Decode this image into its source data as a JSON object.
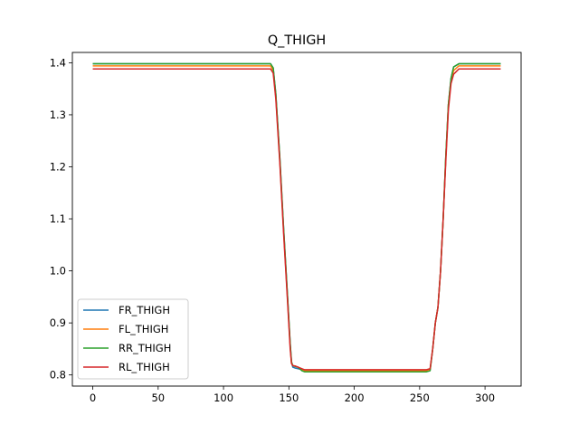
{
  "chart_data": {
    "type": "line",
    "title": "Q_THIGH",
    "xlabel": "",
    "ylabel": "",
    "xlim": [
      -15.6,
      327.6
    ],
    "ylim": [
      0.7786,
      1.4198
    ],
    "xticks": [
      0,
      50,
      100,
      150,
      200,
      250,
      300
    ],
    "xtick_labels": [
      "0",
      "50",
      "100",
      "150",
      "200",
      "250",
      "300"
    ],
    "yticks": [
      0.8,
      0.9,
      1.0,
      1.1,
      1.2,
      1.3,
      1.4
    ],
    "ytick_labels": [
      "0.8",
      "0.9",
      "1.0",
      "1.1",
      "1.2",
      "1.3",
      "1.4"
    ],
    "grid": false,
    "legend_position": "lower-left",
    "series": [
      {
        "name": "FR_THIGH",
        "color": "#1f77b4",
        "points": [
          [
            0,
            1.398
          ],
          [
            136,
            1.398
          ],
          [
            138,
            1.39
          ],
          [
            140,
            1.34
          ],
          [
            143,
            1.22
          ],
          [
            146,
            1.08
          ],
          [
            149,
            0.95
          ],
          [
            151,
            0.86
          ],
          [
            152,
            0.825
          ],
          [
            153,
            0.815
          ],
          [
            155,
            0.813
          ],
          [
            157,
            0.812
          ],
          [
            160,
            0.81
          ],
          [
            162,
            0.808
          ],
          [
            200,
            0.808
          ],
          [
            255,
            0.808
          ],
          [
            258,
            0.81
          ],
          [
            260,
            0.85
          ],
          [
            262,
            0.9
          ],
          [
            264,
            0.93
          ],
          [
            266,
            1.0
          ],
          [
            268,
            1.1
          ],
          [
            270,
            1.22
          ],
          [
            272,
            1.32
          ],
          [
            274,
            1.37
          ],
          [
            276,
            1.392
          ],
          [
            280,
            1.398
          ],
          [
            312,
            1.398
          ]
        ]
      },
      {
        "name": "FL_THIGH",
        "color": "#ff7f0e",
        "points": [
          [
            0,
            1.394
          ],
          [
            136,
            1.394
          ],
          [
            138,
            1.385
          ],
          [
            140,
            1.335
          ],
          [
            143,
            1.215
          ],
          [
            146,
            1.075
          ],
          [
            149,
            0.945
          ],
          [
            151,
            0.855
          ],
          [
            152,
            0.822
          ],
          [
            153,
            0.818
          ],
          [
            155,
            0.817
          ],
          [
            157,
            0.815
          ],
          [
            160,
            0.81
          ],
          [
            162,
            0.808
          ],
          [
            200,
            0.808
          ],
          [
            255,
            0.808
          ],
          [
            258,
            0.81
          ],
          [
            260,
            0.85
          ],
          [
            262,
            0.9
          ],
          [
            264,
            0.93
          ],
          [
            266,
            1.0
          ],
          [
            268,
            1.1
          ],
          [
            270,
            1.22
          ],
          [
            272,
            1.32
          ],
          [
            274,
            1.365
          ],
          [
            276,
            1.385
          ],
          [
            280,
            1.394
          ],
          [
            312,
            1.394
          ]
        ]
      },
      {
        "name": "RR_THIGH",
        "color": "#2ca02c",
        "points": [
          [
            0,
            1.398
          ],
          [
            136,
            1.398
          ],
          [
            138,
            1.39
          ],
          [
            140,
            1.34
          ],
          [
            143,
            1.22
          ],
          [
            146,
            1.08
          ],
          [
            149,
            0.95
          ],
          [
            151,
            0.86
          ],
          [
            152,
            0.825
          ],
          [
            153,
            0.818
          ],
          [
            155,
            0.816
          ],
          [
            157,
            0.815
          ],
          [
            160,
            0.808
          ],
          [
            162,
            0.806
          ],
          [
            200,
            0.806
          ],
          [
            255,
            0.806
          ],
          [
            258,
            0.808
          ],
          [
            260,
            0.85
          ],
          [
            262,
            0.9
          ],
          [
            264,
            0.93
          ],
          [
            266,
            1.0
          ],
          [
            268,
            1.1
          ],
          [
            270,
            1.22
          ],
          [
            272,
            1.32
          ],
          [
            274,
            1.37
          ],
          [
            276,
            1.392
          ],
          [
            280,
            1.398
          ],
          [
            312,
            1.398
          ]
        ]
      },
      {
        "name": "RL_THIGH",
        "color": "#d62728",
        "points": [
          [
            0,
            1.388
          ],
          [
            136,
            1.388
          ],
          [
            138,
            1.38
          ],
          [
            140,
            1.33
          ],
          [
            143,
            1.21
          ],
          [
            146,
            1.07
          ],
          [
            149,
            0.94
          ],
          [
            151,
            0.85
          ],
          [
            152,
            0.822
          ],
          [
            153,
            0.818
          ],
          [
            155,
            0.817
          ],
          [
            157,
            0.815
          ],
          [
            160,
            0.812
          ],
          [
            162,
            0.81
          ],
          [
            200,
            0.81
          ],
          [
            255,
            0.81
          ],
          [
            258,
            0.812
          ],
          [
            260,
            0.85
          ],
          [
            262,
            0.9
          ],
          [
            264,
            0.93
          ],
          [
            266,
            1.0
          ],
          [
            268,
            1.1
          ],
          [
            270,
            1.21
          ],
          [
            272,
            1.31
          ],
          [
            274,
            1.36
          ],
          [
            276,
            1.378
          ],
          [
            280,
            1.388
          ],
          [
            312,
            1.388
          ]
        ]
      }
    ]
  }
}
